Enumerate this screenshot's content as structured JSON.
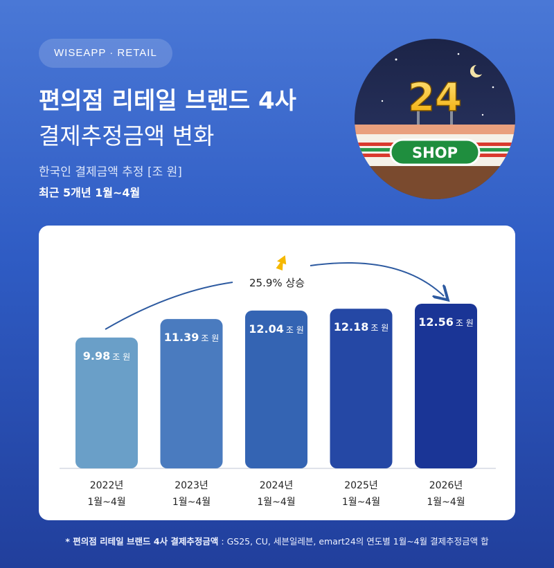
{
  "header": {
    "brand": "WISEAPP · RETAIL",
    "title_line1": "편의점 리테일 브랜드 4사",
    "title_line2": "결제추정금액 변화",
    "subtitle_line1": "한국인 결제금액 추정 [조 원]",
    "subtitle_line2": "최근 5개년 1월~4월"
  },
  "badge": {
    "sign_number": "24",
    "shop_label": "SHOP",
    "icon": "convenience-store-sign-icon"
  },
  "annotation": {
    "text": "25.9% 상승",
    "icon": "up-arrow-icon"
  },
  "colors": {
    "bars": [
      "#6a9fc8",
      "#4a7bbf",
      "#3464b3",
      "#2548a5",
      "#1a3596"
    ],
    "arrow_icon": "#f5b800",
    "trend_line": "#2d5aa0"
  },
  "chart_data": {
    "type": "bar",
    "categories": [
      "2022년\n1월~4월",
      "2023년\n1월~4월",
      "2024년\n1월~4월",
      "2025년\n1월~4월",
      "2026년\n1월~4월"
    ],
    "values": [
      9.98,
      11.39,
      12.04,
      12.18,
      12.56
    ],
    "value_labels": [
      "9.98",
      "11.39",
      "12.04",
      "12.18",
      "12.56"
    ],
    "value_unit": "조 원",
    "ylim": [
      0,
      12.56
    ],
    "grid": false,
    "legend": "none"
  },
  "footnote": {
    "bold": "* 편의점 리테일 브랜드 4사 결제추정금액",
    "rest": " : GS25, CU, 세븐일레븐, emart24의 연도별 1월~4월 결제추정금액 합"
  }
}
